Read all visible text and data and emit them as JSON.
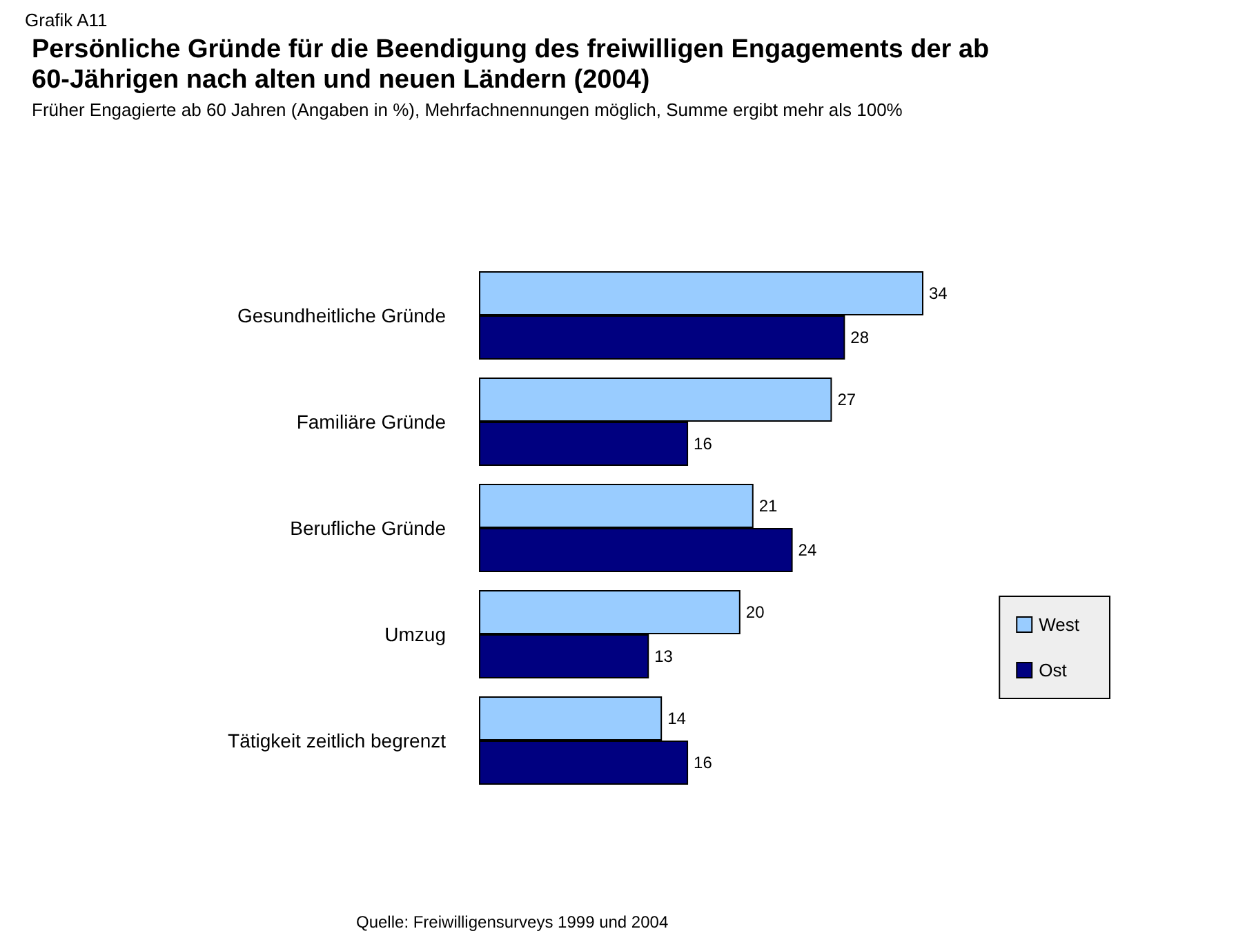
{
  "chart_data": {
    "type": "bar",
    "orientation": "horizontal",
    "title": "Persönliche Gründe für die Beendigung des freiwilligen Engagements der ab 60-Jährigen nach alten und neuen Ländern (2004)",
    "subtitle": "Früher Engagierte ab 60 Jahren (Angaben in %), Mehrfachnennungen möglich, Summe ergibt mehr als 100%",
    "annotations": [
      "Grafik A11",
      "Quelle: Freiwilligensurveys 1999 und 2004"
    ],
    "categories": [
      "Gesundheitliche Gründe",
      "Familiäre Gründe",
      "Berufliche Gründe",
      "Umzug",
      "Tätigkeit zeitlich begrenzt"
    ],
    "series": [
      {
        "name": "West",
        "color": "#99ccff",
        "values": [
          34,
          27,
          21,
          20,
          14
        ]
      },
      {
        "name": "Ost",
        "color": "#000080",
        "values": [
          28,
          16,
          24,
          13,
          16
        ]
      }
    ],
    "data_labels": true,
    "legend": "right"
  }
}
